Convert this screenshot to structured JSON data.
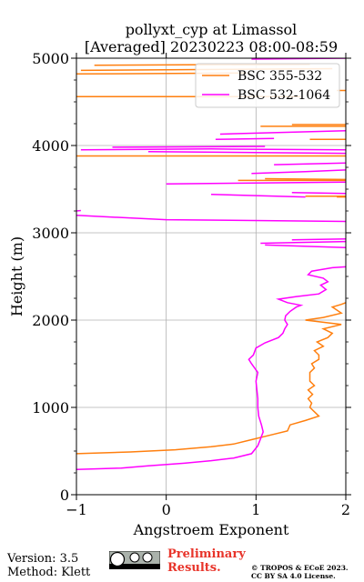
{
  "chart_data": {
    "type": "line",
    "title": "pollyxt_cyp at Limassol",
    "subtitle": "[Averaged] 20230223 08:00-08:59",
    "xlabel": "Angstroem Exponent",
    "ylabel": "Height (m)",
    "xlim": [
      -1,
      2
    ],
    "ylim": [
      0,
      5000
    ],
    "xticks": [
      "−1",
      "0",
      "1",
      "2"
    ],
    "xtick_values": [
      -1,
      0,
      1,
      2
    ],
    "yticks": [
      "0",
      "1000",
      "2000",
      "3000",
      "4000",
      "5000"
    ],
    "ytick_values": [
      0,
      1000,
      2000,
      3000,
      4000,
      5000
    ],
    "grid": true,
    "legend_position": "top-right",
    "series": [
      {
        "name": "BSC 355-532",
        "color": "#ff7f0e",
        "points": [
          [
            -1.0,
            470
          ],
          [
            -0.4,
            490
          ],
          [
            0.1,
            515
          ],
          [
            0.5,
            550
          ],
          [
            0.75,
            580
          ],
          [
            0.95,
            630
          ],
          [
            1.15,
            680
          ],
          [
            1.35,
            730
          ],
          [
            1.38,
            800
          ],
          [
            1.55,
            850
          ],
          [
            1.7,
            900
          ],
          [
            1.65,
            950
          ],
          [
            1.6,
            1000
          ],
          [
            1.62,
            1050
          ],
          [
            1.58,
            1100
          ],
          [
            1.63,
            1150
          ],
          [
            1.58,
            1200
          ],
          [
            1.65,
            1250
          ],
          [
            1.6,
            1300
          ],
          [
            1.6,
            1350
          ],
          [
            1.6,
            1400
          ],
          [
            1.65,
            1450
          ],
          [
            1.62,
            1500
          ],
          [
            1.7,
            1550
          ],
          [
            1.7,
            1600
          ],
          [
            1.65,
            1650
          ],
          [
            1.75,
            1700
          ],
          [
            1.68,
            1750
          ],
          [
            1.8,
            1800
          ],
          [
            1.85,
            1850
          ],
          [
            1.75,
            1900
          ],
          [
            1.95,
            1950
          ],
          [
            1.55,
            2000
          ],
          [
            1.75,
            2030
          ],
          [
            1.95,
            2080
          ],
          [
            1.85,
            2150
          ],
          [
            1.95,
            2180
          ],
          [
            2.0,
            2200
          ]
        ],
        "segments": [
          [
            [
              1.9,
              3410
            ],
            [
              2.0,
              3410
            ]
          ],
          [
            [
              1.55,
              3420
            ],
            [
              2.0,
              3420
            ]
          ],
          [
            [
              0.8,
              3600
            ],
            [
              2.0,
              3600
            ]
          ],
          [
            [
              1.1,
              3620
            ],
            [
              2.0,
              3610
            ]
          ],
          [
            [
              -1.0,
              3880
            ],
            [
              2.0,
              3880
            ]
          ],
          [
            [
              1.6,
              4070
            ],
            [
              2.0,
              4070
            ]
          ],
          [
            [
              1.05,
              4220
            ],
            [
              2.0,
              4220
            ]
          ],
          [
            [
              1.4,
              4240
            ],
            [
              2.0,
              4240
            ]
          ],
          [
            [
              1.9,
              4630
            ],
            [
              2.0,
              4630
            ]
          ],
          [
            [
              -1.0,
              4560
            ],
            [
              1.5,
              4560
            ]
          ],
          [
            [
              -1.0,
              4820
            ],
            [
              0.9,
              4830
            ]
          ],
          [
            [
              -0.95,
              4860
            ],
            [
              1.85,
              4880
            ]
          ],
          [
            [
              -0.8,
              4920
            ],
            [
              1.6,
              4930
            ]
          ]
        ]
      },
      {
        "name": "BSC 532-1064",
        "color": "#ff00ff",
        "points": [
          [
            -1.0,
            290
          ],
          [
            -0.5,
            305
          ],
          [
            -0.2,
            330
          ],
          [
            0.2,
            360
          ],
          [
            0.5,
            390
          ],
          [
            0.75,
            420
          ],
          [
            0.95,
            470
          ],
          [
            1.02,
            560
          ],
          [
            1.05,
            640
          ],
          [
            1.08,
            720
          ],
          [
            1.06,
            800
          ],
          [
            1.03,
            900
          ],
          [
            1.02,
            1000
          ],
          [
            1.02,
            1100
          ],
          [
            1.01,
            1200
          ],
          [
            1.0,
            1300
          ],
          [
            1.02,
            1400
          ],
          [
            0.95,
            1500
          ],
          [
            0.92,
            1550
          ],
          [
            0.97,
            1600
          ],
          [
            1.0,
            1680
          ],
          [
            1.1,
            1740
          ],
          [
            1.25,
            1800
          ],
          [
            1.3,
            1850
          ],
          [
            1.32,
            1900
          ],
          [
            1.35,
            1950
          ],
          [
            1.32,
            2000
          ],
          [
            1.33,
            2050
          ],
          [
            1.38,
            2100
          ],
          [
            1.45,
            2150
          ],
          [
            1.5,
            2170
          ],
          [
            1.35,
            2200
          ],
          [
            1.25,
            2240
          ],
          [
            1.45,
            2270
          ],
          [
            1.7,
            2300
          ],
          [
            1.78,
            2350
          ],
          [
            1.72,
            2400
          ],
          [
            1.8,
            2440
          ],
          [
            1.75,
            2480
          ],
          [
            1.58,
            2520
          ],
          [
            1.62,
            2560
          ],
          [
            1.85,
            2600
          ],
          [
            2.0,
            2610
          ]
        ],
        "segments": [
          [
            [
              1.1,
              2860
            ],
            [
              2.0,
              2830
            ]
          ],
          [
            [
              1.05,
              2880
            ],
            [
              2.0,
              2900
            ]
          ],
          [
            [
              1.4,
              2920
            ],
            [
              2.0,
              2930
            ]
          ],
          [
            [
              -1.0,
              3200
            ],
            [
              0.0,
              3150
            ],
            [
              2.0,
              3130
            ]
          ],
          [
            [
              -1.0,
              3250
            ],
            [
              -0.95,
              3255
            ]
          ],
          [
            [
              0.5,
              3440
            ],
            [
              1.55,
              3410
            ]
          ],
          [
            [
              1.4,
              3460
            ],
            [
              2.0,
              3450
            ]
          ],
          [
            [
              0.0,
              3560
            ],
            [
              2.0,
              3580
            ]
          ],
          [
            [
              0.95,
              3680
            ],
            [
              1.55,
              3700
            ],
            [
              2.0,
              3720
            ]
          ],
          [
            [
              1.2,
              3780
            ],
            [
              2.0,
              3800
            ]
          ],
          [
            [
              -0.95,
              3950
            ],
            [
              0.5,
              3960
            ],
            [
              2.0,
              3950
            ]
          ],
          [
            [
              -0.6,
              3980
            ],
            [
              1.1,
              3990
            ]
          ],
          [
            [
              0.55,
              4070
            ],
            [
              1.2,
              4080
            ]
          ],
          [
            [
              0.6,
              4130
            ],
            [
              2.0,
              4170
            ]
          ],
          [
            [
              -0.2,
              3930
            ],
            [
              2.0,
              3910
            ]
          ],
          [
            [
              0.95,
              4990
            ],
            [
              2.0,
              5000
            ]
          ]
        ]
      }
    ]
  },
  "footer": {
    "version": "Version: 3.5",
    "method": "Method: Klett",
    "preliminary_line1": "Preliminary",
    "preliminary_line2": "Results.",
    "copyright_line1": "© TROPOS & ECoE 2023.",
    "copyright_line2": "CC BY SA 4.0 License."
  }
}
